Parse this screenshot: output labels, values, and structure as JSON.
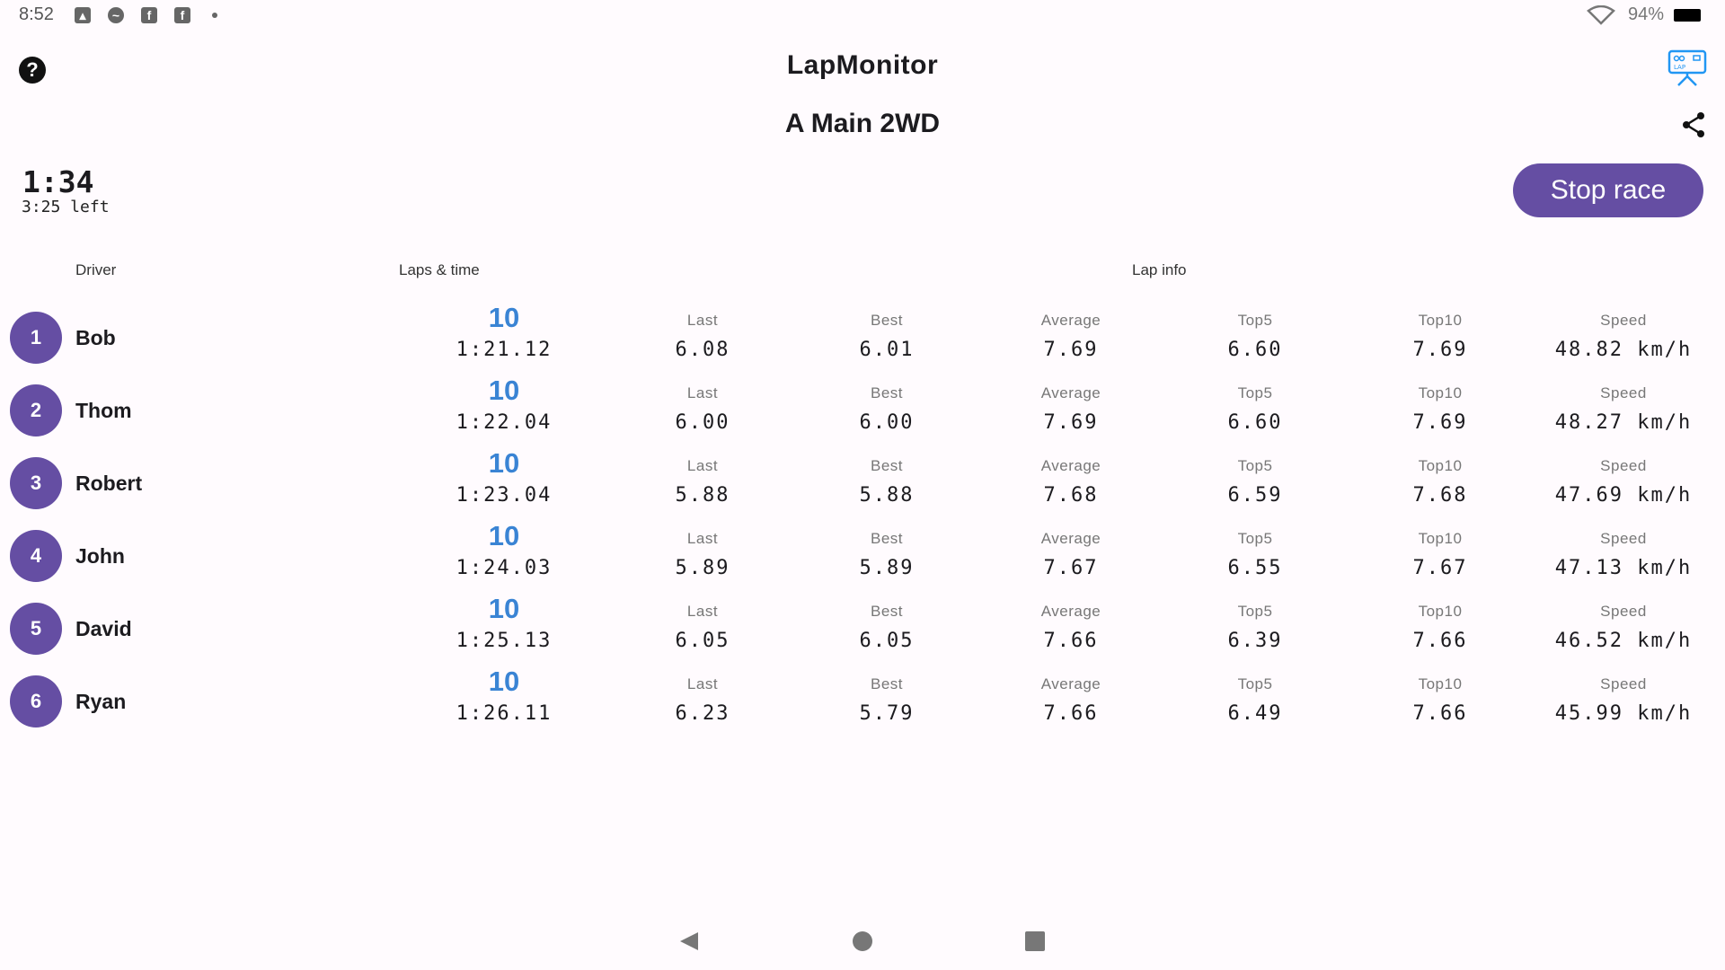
{
  "status_bar": {
    "time": "8:52",
    "battery": "94%",
    "icons": [
      "image-icon",
      "messenger-icon",
      "facebook-icon",
      "facebook-icon",
      "dot-icon",
      "wifi-icon",
      "battery-icon"
    ]
  },
  "header": {
    "title": "LapMonitor",
    "subtitle": "A Main 2WD"
  },
  "timer": {
    "elapsed": "1:34",
    "remaining": "3:25 left"
  },
  "stop_button": "Stop race",
  "columns": {
    "driver": "Driver",
    "laps_time": "Laps & time",
    "lap_info": "Lap info"
  },
  "labels": {
    "last": "Last",
    "best": "Best",
    "average": "Average",
    "top5": "Top5",
    "top10": "Top10",
    "speed": "Speed"
  },
  "colors": {
    "accent": "#654ea3",
    "laps": "#3a84d4",
    "lap_icon": "#2196f3"
  },
  "drivers": [
    {
      "pos": "1",
      "name": "Bob",
      "laps": "10",
      "time": "1:21.12",
      "last": "6.08",
      "best": "6.01",
      "average": "7.69",
      "top5": "6.60",
      "top10": "7.69",
      "speed": "48.82 km/h"
    },
    {
      "pos": "2",
      "name": "Thom",
      "laps": "10",
      "time": "1:22.04",
      "last": "6.00",
      "best": "6.00",
      "average": "7.69",
      "top5": "6.60",
      "top10": "7.69",
      "speed": "48.27 km/h"
    },
    {
      "pos": "3",
      "name": "Robert",
      "laps": "10",
      "time": "1:23.04",
      "last": "5.88",
      "best": "5.88",
      "average": "7.68",
      "top5": "6.59",
      "top10": "7.68",
      "speed": "47.69 km/h"
    },
    {
      "pos": "4",
      "name": "John",
      "laps": "10",
      "time": "1:24.03",
      "last": "5.89",
      "best": "5.89",
      "average": "7.67",
      "top5": "6.55",
      "top10": "7.67",
      "speed": "47.13 km/h"
    },
    {
      "pos": "5",
      "name": "David",
      "laps": "10",
      "time": "1:25.13",
      "last": "6.05",
      "best": "6.05",
      "average": "7.66",
      "top5": "6.39",
      "top10": "7.66",
      "speed": "46.52 km/h"
    },
    {
      "pos": "6",
      "name": "Ryan",
      "laps": "10",
      "time": "1:26.11",
      "last": "6.23",
      "best": "5.79",
      "average": "7.66",
      "top5": "6.49",
      "top10": "7.66",
      "speed": "45.99 km/h"
    }
  ]
}
